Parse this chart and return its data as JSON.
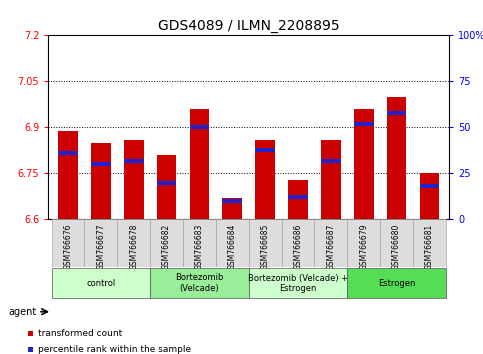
{
  "title": "GDS4089 / ILMN_2208895",
  "samples": [
    "GSM766676",
    "GSM766677",
    "GSM766678",
    "GSM766682",
    "GSM766683",
    "GSM766684",
    "GSM766685",
    "GSM766686",
    "GSM766687",
    "GSM766679",
    "GSM766680",
    "GSM766681"
  ],
  "transformed_counts": [
    6.89,
    6.85,
    6.86,
    6.81,
    6.96,
    6.67,
    6.86,
    6.73,
    6.86,
    6.96,
    7.0,
    6.75
  ],
  "percentile_ranks": [
    36,
    30,
    32,
    20,
    50,
    10,
    38,
    12,
    32,
    52,
    58,
    18
  ],
  "ymin": 6.6,
  "ymax": 7.2,
  "yticks": [
    6.6,
    6.75,
    6.9,
    7.05,
    7.2
  ],
  "ytick_labels": [
    "6.6",
    "6.75",
    "6.9",
    "7.05",
    "7.2"
  ],
  "right_yticks": [
    0,
    25,
    50,
    75,
    100
  ],
  "right_ytick_labels": [
    "0",
    "25",
    "50",
    "75",
    "100%"
  ],
  "bar_color": "#cc0000",
  "blue_color": "#2222cc",
  "groups": [
    {
      "label": "control",
      "start": 0,
      "end": 3,
      "color": "#ccffcc"
    },
    {
      "label": "Bortezomib\n(Velcade)",
      "start": 3,
      "end": 6,
      "color": "#99ee99"
    },
    {
      "label": "Bortezomib (Velcade) +\nEstrogen",
      "start": 6,
      "end": 9,
      "color": "#ccffcc"
    },
    {
      "label": "Estrogen",
      "start": 9,
      "end": 12,
      "color": "#55dd55"
    }
  ],
  "agent_label": "agent",
  "legend_items": [
    {
      "color": "#cc0000",
      "label": "transformed count"
    },
    {
      "color": "#2222cc",
      "label": "percentile rank within the sample"
    }
  ],
  "title_fontsize": 10,
  "tick_fontsize": 7,
  "label_fontsize": 6.5,
  "bar_width": 0.6
}
